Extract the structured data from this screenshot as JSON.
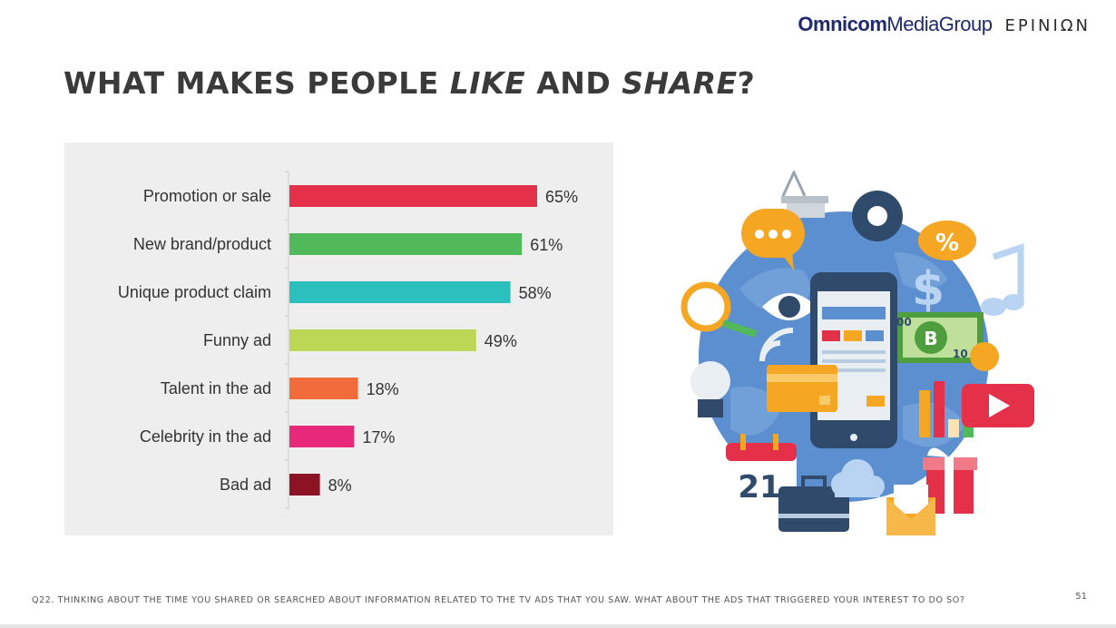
{
  "header": {
    "logo_omnicom_bold": "Omnicom",
    "logo_omnicom_regular": "MediaGroup",
    "logo_epinion": "EPINIΩN"
  },
  "title": {
    "part1": "WHAT MAKES PEOPLE ",
    "part2": "LIKE",
    "part3": " AND ",
    "part4": "SHARE",
    "part5": "?"
  },
  "chart_data": {
    "type": "bar",
    "orientation": "horizontal",
    "categories": [
      "Promotion or sale",
      "New brand/product",
      "Unique product claim",
      "Funny ad",
      "Talent in the ad",
      "Celebrity in the ad",
      "Bad ad"
    ],
    "values": [
      65,
      61,
      58,
      49,
      18,
      17,
      8
    ],
    "value_labels": [
      "65%",
      "61%",
      "58%",
      "49%",
      "18%",
      "17%",
      "8%"
    ],
    "colors": [
      "#e5304a",
      "#52b95b",
      "#2bbfbd",
      "#bcd656",
      "#f26c3b",
      "#e8287b",
      "#8c1224"
    ],
    "grid": false,
    "xlim": [
      0,
      100
    ]
  },
  "illustration": {
    "calendar_day": "21",
    "percent_sign": "%",
    "dollar_sign": "$",
    "bitcoin_sign": "B",
    "bill_value_left": "00",
    "bill_value_right": "10"
  },
  "footer": {
    "question": "Q22. THINKING ABOUT THE TIME YOU SHARED OR SEARCHED ABOUT INFORMATION RELATED TO THE TV ADS THAT YOU SAW. WHAT ABOUT THE ADS THAT TRIGGERED YOUR INTEREST TO DO SO?",
    "page_number": "51"
  }
}
